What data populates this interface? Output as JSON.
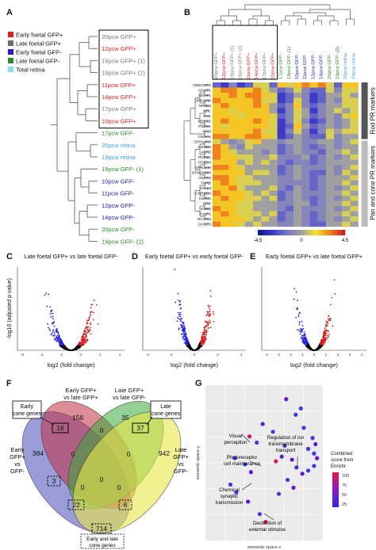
{
  "panels": {
    "a": "A",
    "b": "B",
    "c": "C",
    "d": "D",
    "e": "E",
    "f": "F",
    "g": "G"
  },
  "legend": [
    {
      "label": "Early foetal GFP+",
      "color": "#e02020"
    },
    {
      "label": "Late foetal GFP+",
      "color": "#6e6e6e"
    },
    {
      "label": "Early foetal GFP-",
      "color": "#2020c8"
    },
    {
      "label": "Late foetal GFP-",
      "color": "#2a8a2a"
    },
    {
      "label": "Total retina",
      "color": "#7fe0f0"
    }
  ],
  "tree_samples": [
    {
      "label": "20pcw GFP+",
      "color": "#777777"
    },
    {
      "label": "12pcw GFP+",
      "color": "#e02020"
    },
    {
      "label": "19pcw GFP+ (1)",
      "color": "#777777"
    },
    {
      "label": "19pcw GFP+ (2)",
      "color": "#777777"
    },
    {
      "label": "11pcw GFP+",
      "color": "#e02020"
    },
    {
      "label": "14pcw GFP+",
      "color": "#e02020"
    },
    {
      "label": "17pcw GFP+",
      "color": "#777777"
    },
    {
      "label": "10pcw GFP+",
      "color": "#e02020"
    },
    {
      "label": "17pcw GFP-",
      "color": "#2a8a2a"
    },
    {
      "label": "20pcw retina",
      "color": "#3aa0e0"
    },
    {
      "label": "19pcw retina",
      "color": "#3aa0e0"
    },
    {
      "label": "19pcw GFP- (1)",
      "color": "#2a8a2a"
    },
    {
      "label": "10pcw GFP-",
      "color": "#2020c8"
    },
    {
      "label": "11pcw GFP-",
      "color": "#2020c8"
    },
    {
      "label": "12pcw GFP-",
      "color": "#2020c8"
    },
    {
      "label": "14pcw GFP-",
      "color": "#2020c8"
    },
    {
      "label": "20pcw GFP-",
      "color": "#2a8a2a"
    },
    {
      "label": "19pcw GFP- (2)",
      "color": "#2a8a2a"
    }
  ],
  "heatmap": {
    "genes": [
      "ONECUT1",
      "GNAT1",
      "GNAT1",
      "OPN1SW",
      "NR2E3",
      "NRL",
      "SAG",
      "PDE6G",
      "PDE6A",
      "RHO",
      "CNGA1",
      "OPN1MW",
      "CNGB3",
      "ARR3",
      "PDE6C",
      "PDE6H",
      "OPN1LW",
      "OPN1MW3",
      "GNAT2",
      "THRB",
      "SALL3",
      "CHRNB4",
      "KWRG",
      "CRX",
      "GNB3",
      "TULP1",
      "RCVRN",
      "GNGT2"
    ],
    "columns": [
      "20pcw GFP+",
      "12pcw GFP+",
      "19pcw GFP+ (1)",
      "19pcw GFP+ (2)",
      "11pcw GFP+",
      "14pcw GFP+",
      "17pcw GFP+",
      "10pcw GFP+",
      "17pcw GFP-",
      "19pcw GFP- (1)",
      "10pcw GFP-",
      "11pcw GFP-",
      "12pcw GFP-",
      "14pcw GFP-",
      "20pcw GFP-",
      "19pcw GFP- (2)",
      "20pcw retina",
      "19pcw retina"
    ],
    "col_colors": [
      "#777777",
      "#e02020",
      "#777777",
      "#777777",
      "#e02020",
      "#e02020",
      "#777777",
      "#e02020",
      "#2a8a2a",
      "#2a8a2a",
      "#2020c8",
      "#2020c8",
      "#2020c8",
      "#2020c8",
      "#2a8a2a",
      "#2a8a2a",
      "#3aa0e0",
      "#3aa0e0"
    ],
    "side_labels": [
      "Rod PR markers",
      "Pan and cone PR markers"
    ],
    "scale": {
      "min": "-4.5",
      "mid": "0",
      "max": "4.5"
    },
    "values": [
      [
        -2,
        -3,
        -1,
        -3,
        -2,
        1,
        1,
        -2,
        2,
        1,
        2,
        3,
        2,
        3,
        1,
        -2,
        2,
        2
      ],
      [
        2,
        3,
        3,
        2,
        2,
        3,
        1,
        0,
        -2,
        -1,
        1,
        -1,
        -2,
        -2,
        1,
        -1,
        1,
        1
      ],
      [
        2,
        2,
        3,
        2,
        3,
        3,
        2,
        1,
        -3,
        -2,
        0,
        -1,
        -3,
        -2,
        0,
        0,
        1,
        0
      ],
      [
        3,
        2,
        2,
        2,
        2,
        3,
        1,
        1,
        -3,
        -2,
        1,
        -1,
        -3,
        -2,
        0,
        -1,
        1,
        1
      ],
      [
        2,
        3,
        2,
        2,
        2,
        3,
        2,
        0,
        -2,
        -1,
        2,
        -1,
        -2,
        -1,
        0,
        0,
        1,
        1
      ],
      [
        2,
        2,
        1,
        2,
        2,
        2,
        2,
        0,
        -3,
        -1,
        1,
        0,
        -3,
        -1,
        0,
        1,
        0,
        1
      ],
      [
        2,
        2,
        2,
        1,
        2,
        2,
        2,
        1,
        -2,
        -1,
        1,
        0,
        -2,
        -1,
        0,
        -1,
        1,
        2
      ],
      [
        2,
        3,
        2,
        2,
        2,
        3,
        2,
        1,
        -3,
        -1,
        1,
        -1,
        -3,
        -2,
        0,
        -1,
        0,
        1
      ],
      [
        2,
        1,
        2,
        2,
        2,
        2,
        2,
        1,
        -3,
        -2,
        2,
        0,
        -2,
        -1,
        0,
        -1,
        0,
        1
      ],
      [
        2,
        2,
        2,
        2,
        2,
        3,
        1,
        1,
        -3,
        -1,
        1,
        -1,
        -3,
        -1,
        1,
        0,
        1,
        1
      ],
      [
        3,
        3,
        2,
        2,
        3,
        3,
        2,
        1,
        -3,
        -2,
        0,
        -1,
        -2,
        -2,
        1,
        -1,
        0,
        0
      ],
      [
        1,
        0,
        -1,
        0,
        1,
        2,
        0,
        0,
        -1,
        0,
        0,
        -1,
        -1,
        0,
        0,
        -1,
        0,
        1
      ],
      [
        3,
        2,
        0,
        -1,
        1,
        0,
        0,
        0,
        -2,
        -1,
        0,
        -1,
        -2,
        -1,
        0,
        -1,
        0,
        0
      ],
      [
        3,
        2,
        1,
        0,
        0,
        0,
        -1,
        0,
        -2,
        -1,
        0,
        -1,
        -1,
        -2,
        0,
        0,
        1,
        0
      ],
      [
        3,
        2,
        2,
        1,
        1,
        0,
        0,
        1,
        -1,
        -1,
        -1,
        0,
        -2,
        -1,
        0,
        -1,
        0,
        1
      ],
      [
        2,
        2,
        2,
        0,
        1,
        0,
        1,
        0,
        -1,
        -2,
        -1,
        -1,
        -2,
        -1,
        0,
        0,
        0,
        0
      ],
      [
        3,
        3,
        2,
        1,
        0,
        0,
        0,
        0,
        -2,
        -1,
        0,
        -1,
        -1,
        -1,
        0,
        -1,
        0,
        1
      ],
      [
        2,
        2,
        2,
        2,
        0,
        1,
        1,
        0,
        -2,
        -1,
        0,
        -1,
        -2,
        -2,
        0,
        -1,
        1,
        0
      ],
      [
        3,
        3,
        2,
        1,
        1,
        0,
        0,
        0,
        -1,
        -1,
        0,
        -1,
        -2,
        -1,
        0,
        0,
        0,
        1
      ],
      [
        2,
        3,
        2,
        1,
        1,
        1,
        0,
        0,
        -1,
        -1,
        -1,
        -1,
        -2,
        -1,
        0,
        0,
        1,
        0
      ],
      [
        2,
        2,
        3,
        1,
        0,
        0,
        0,
        1,
        -1,
        -2,
        0,
        -1,
        -2,
        -1,
        0,
        -1,
        0,
        1
      ],
      [
        3,
        2,
        2,
        2,
        1,
        0,
        1,
        0,
        -2,
        -1,
        0,
        -1,
        -1,
        -1,
        0,
        0,
        1,
        0
      ],
      [
        2,
        3,
        2,
        2,
        1,
        1,
        0,
        1,
        -2,
        -1,
        0,
        -1,
        -2,
        -1,
        0,
        -1,
        0,
        1
      ],
      [
        2,
        2,
        2,
        1,
        1,
        0,
        0,
        0,
        -1,
        -1,
        0,
        0,
        -2,
        -1,
        0,
        0,
        1,
        0
      ],
      [
        3,
        2,
        2,
        1,
        1,
        0,
        0,
        0,
        -1,
        -2,
        0,
        -1,
        -1,
        -1,
        0,
        -1,
        0,
        1
      ],
      [
        2,
        3,
        2,
        1,
        1,
        1,
        0,
        1,
        -2,
        -1,
        0,
        -1,
        -2,
        -1,
        0,
        0,
        1,
        0
      ],
      [
        2,
        2,
        2,
        2,
        1,
        0,
        1,
        0,
        -2,
        -1,
        0,
        -1,
        -2,
        -1,
        0,
        -1,
        0,
        1
      ],
      [
        3,
        2,
        2,
        1,
        0,
        1,
        0,
        0,
        -1,
        -1,
        0,
        -1,
        -2,
        -2,
        0,
        0,
        1,
        0
      ]
    ]
  },
  "volcano_c": {
    "title": "Late foetal GFP+ vs late foetal GFP-",
    "xlabel": "log2 (fold change)",
    "ylabel": "-log10 (adjusted p value)",
    "xticks": [
      "-6",
      "-4",
      "-2",
      "0",
      "2",
      "4"
    ]
  },
  "volcano_d": {
    "title": "Early foetal GFP+ vs early foetal GFP-",
    "xlabel": "log2 (fold change)",
    "xticks": [
      "-4",
      "-2",
      "0",
      "2",
      "4"
    ]
  },
  "volcano_e": {
    "title": "Early foetal GFP+ vs late foetal GFP+",
    "xlabel": "log2 (fold change)",
    "xticks": [
      "-4",
      "-3",
      "-2",
      "-1",
      "0",
      "1",
      "2",
      "3",
      "4"
    ]
  },
  "venn": {
    "set_labels": [
      "Early GFP+ vs late GFP+",
      "Late GFP+ vs late GFP-",
      "Early GFP+ vs GFP-",
      "Late GFP+ vs GFP-"
    ],
    "early_cone_label": "Early cone genes",
    "late_cone_label": "Late cone genes",
    "both_cone_label": "Early and late cone genes",
    "counts": {
      "c158": "158",
      "c35": "35",
      "c384": "384",
      "c942": "942",
      "c16": "16",
      "c37": "37",
      "c0a": "0",
      "c0b": "0",
      "c0c": "0",
      "c0d": "0",
      "c0e": "0",
      "c0f": "0",
      "c3": "3",
      "c22": "22",
      "c6": "6",
      "c714": "714"
    }
  },
  "go": {
    "xlabel": "semantic space x",
    "ylabel": "semantic space y",
    "legend_title": "Combined score from Enrichr",
    "legend_ticks": [
      "100",
      "75",
      "50",
      "25"
    ],
    "annotations": [
      "Visual perception",
      "Regulation of ion transmembrane transport",
      "Photoreceptor cell maintenance",
      "Chemical synaptic transmission",
      "Dectection of external stimulus"
    ]
  }
}
